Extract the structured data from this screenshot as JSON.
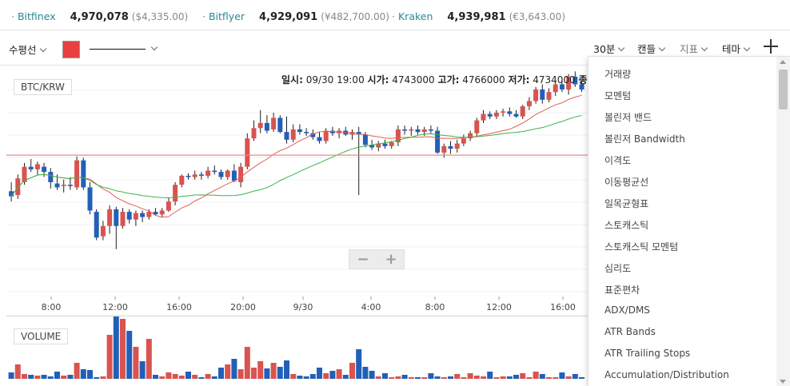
{
  "exchanges": [
    {
      "name": "Bitfinex",
      "price": "4,970,078",
      "converted": "($4,335.00)"
    },
    {
      "name": "Bitflyer",
      "price": "4,929,091",
      "converted": "(¥482,700.00)"
    },
    {
      "name": "Kraken",
      "price": "4,939,981",
      "converted": "(€3,643.00)"
    }
  ],
  "toolbar": {
    "line_type": "수평선",
    "line_color": "#e84040",
    "interval": "30분",
    "chart_type": "캔들",
    "indicators": "지표",
    "theme": "테마"
  },
  "info_bar": {
    "datetime_label": "일시:",
    "datetime_value": "09/30 19:00",
    "open_label": "시가:",
    "open_value": "4743000",
    "high_label": "고가:",
    "high_value": "4766000",
    "low_label": "저가:",
    "low_value": "4734000",
    "close_label": "종가:"
  },
  "zoom": {
    "minus": "−",
    "plus": "+"
  },
  "indicator_menu": [
    "거래량",
    "모멘텀",
    "볼린저 밴드",
    "볼린저 Bandwidth",
    "이격도",
    "이동평균선",
    "일목균형표",
    "스토캐스틱",
    "스토캐스틱 모멘텀",
    "심리도",
    "표준편차",
    "ADX/DMS",
    "ATR Bands",
    "ATR Trailing Stops",
    "Accumulation/Distribution"
  ],
  "chart_data": {
    "type": "candlestick",
    "title": "BTC/KRW",
    "volume_title": "VOLUME",
    "x_ticks": [
      "8:00",
      "12:00",
      "16:00",
      "20:00",
      "9/30",
      "4:00",
      "8:00",
      "12:00",
      "16:00"
    ],
    "price_range": [
      4605000,
      4775000
    ],
    "horizontal_line": 4711000,
    "colors": {
      "up": "#d9534f",
      "down": "#2260b8",
      "ma_short": "#e06055",
      "ma_long": "#3bb54a"
    },
    "candles": [
      {
        "o": 4683000,
        "h": 4690000,
        "l": 4675000,
        "c": 4679000
      },
      {
        "o": 4680000,
        "h": 4696000,
        "l": 4677000,
        "c": 4693000
      },
      {
        "o": 4690000,
        "h": 4705000,
        "l": 4688000,
        "c": 4702000
      },
      {
        "o": 4702000,
        "h": 4708000,
        "l": 4698000,
        "c": 4700000
      },
      {
        "o": 4700000,
        "h": 4706000,
        "l": 4696000,
        "c": 4704000
      },
      {
        "o": 4702000,
        "h": 4705000,
        "l": 4694000,
        "c": 4698000
      },
      {
        "o": 4698000,
        "h": 4701000,
        "l": 4685000,
        "c": 4690000
      },
      {
        "o": 4689000,
        "h": 4696000,
        "l": 4684000,
        "c": 4686000
      },
      {
        "o": 4687000,
        "h": 4692000,
        "l": 4682000,
        "c": 4688000
      },
      {
        "o": 4688000,
        "h": 4694000,
        "l": 4684000,
        "c": 4687000
      },
      {
        "o": 4686000,
        "h": 4710000,
        "l": 4684000,
        "c": 4707000
      },
      {
        "o": 4707000,
        "h": 4709000,
        "l": 4684000,
        "c": 4686000
      },
      {
        "o": 4686000,
        "h": 4690000,
        "l": 4665000,
        "c": 4668000
      },
      {
        "o": 4667000,
        "h": 4669000,
        "l": 4645000,
        "c": 4647000
      },
      {
        "o": 4648000,
        "h": 4660000,
        "l": 4645000,
        "c": 4656000
      },
      {
        "o": 4656000,
        "h": 4672000,
        "l": 4650000,
        "c": 4669000
      },
      {
        "o": 4669000,
        "h": 4671000,
        "l": 4638000,
        "c": 4656000
      },
      {
        "o": 4656000,
        "h": 4670000,
        "l": 4654000,
        "c": 4667000
      },
      {
        "o": 4667000,
        "h": 4669000,
        "l": 4658000,
        "c": 4661000
      },
      {
        "o": 4661000,
        "h": 4668000,
        "l": 4656000,
        "c": 4666000
      },
      {
        "o": 4666000,
        "h": 4668000,
        "l": 4659000,
        "c": 4663000
      },
      {
        "o": 4663000,
        "h": 4669000,
        "l": 4661000,
        "c": 4667000
      },
      {
        "o": 4667000,
        "h": 4670000,
        "l": 4664000,
        "c": 4665000
      },
      {
        "o": 4665000,
        "h": 4670000,
        "l": 4663000,
        "c": 4668000
      },
      {
        "o": 4668000,
        "h": 4678000,
        "l": 4667000,
        "c": 4675000
      },
      {
        "o": 4675000,
        "h": 4690000,
        "l": 4672000,
        "c": 4688000
      },
      {
        "o": 4688000,
        "h": 4696000,
        "l": 4686000,
        "c": 4695000
      },
      {
        "o": 4695000,
        "h": 4697000,
        "l": 4692000,
        "c": 4694000
      },
      {
        "o": 4694000,
        "h": 4699000,
        "l": 4692000,
        "c": 4696000
      },
      {
        "o": 4696000,
        "h": 4698000,
        "l": 4692000,
        "c": 4695000
      },
      {
        "o": 4695000,
        "h": 4702000,
        "l": 4693000,
        "c": 4699000
      },
      {
        "o": 4699000,
        "h": 4703000,
        "l": 4696000,
        "c": 4698000
      },
      {
        "o": 4698000,
        "h": 4700000,
        "l": 4692000,
        "c": 4694000
      },
      {
        "o": 4694000,
        "h": 4700000,
        "l": 4692000,
        "c": 4699000
      },
      {
        "o": 4699000,
        "h": 4704000,
        "l": 4690000,
        "c": 4691000
      },
      {
        "o": 4690000,
        "h": 4705000,
        "l": 4686000,
        "c": 4702000
      },
      {
        "o": 4702000,
        "h": 4728000,
        "l": 4700000,
        "c": 4724000
      },
      {
        "o": 4724000,
        "h": 4738000,
        "l": 4722000,
        "c": 4732000
      },
      {
        "o": 4732000,
        "h": 4746000,
        "l": 4728000,
        "c": 4736000
      },
      {
        "o": 4736000,
        "h": 4742000,
        "l": 4728000,
        "c": 4730000
      },
      {
        "o": 4731000,
        "h": 4744000,
        "l": 4729000,
        "c": 4740000
      },
      {
        "o": 4740000,
        "h": 4742000,
        "l": 4728000,
        "c": 4729000
      },
      {
        "o": 4729000,
        "h": 4741000,
        "l": 4720000,
        "c": 4723000
      },
      {
        "o": 4723000,
        "h": 4735000,
        "l": 4721000,
        "c": 4731000
      },
      {
        "o": 4731000,
        "h": 4735000,
        "l": 4727000,
        "c": 4729000
      },
      {
        "o": 4729000,
        "h": 4732000,
        "l": 4726000,
        "c": 4728000
      },
      {
        "o": 4728000,
        "h": 4731000,
        "l": 4723000,
        "c": 4725000
      },
      {
        "o": 4725000,
        "h": 4729000,
        "l": 4720000,
        "c": 4722000
      },
      {
        "o": 4722000,
        "h": 4732000,
        "l": 4720000,
        "c": 4730000
      },
      {
        "o": 4730000,
        "h": 4733000,
        "l": 4726000,
        "c": 4728000
      },
      {
        "o": 4728000,
        "h": 4732000,
        "l": 4724000,
        "c": 4730000
      },
      {
        "o": 4730000,
        "h": 4733000,
        "l": 4726000,
        "c": 4727000
      },
      {
        "o": 4727000,
        "h": 4731000,
        "l": 4723000,
        "c": 4729000
      },
      {
        "o": 4729000,
        "h": 4733000,
        "l": 4680000,
        "c": 4727000
      },
      {
        "o": 4727000,
        "h": 4729000,
        "l": 4717000,
        "c": 4719000
      },
      {
        "o": 4719000,
        "h": 4723000,
        "l": 4715000,
        "c": 4717000
      },
      {
        "o": 4717000,
        "h": 4722000,
        "l": 4714000,
        "c": 4720000
      },
      {
        "o": 4720000,
        "h": 4723000,
        "l": 4716000,
        "c": 4718000
      },
      {
        "o": 4718000,
        "h": 4722000,
        "l": 4716000,
        "c": 4721000
      },
      {
        "o": 4721000,
        "h": 4734000,
        "l": 4718000,
        "c": 4731000
      },
      {
        "o": 4731000,
        "h": 4734000,
        "l": 4727000,
        "c": 4730000
      },
      {
        "o": 4730000,
        "h": 4733000,
        "l": 4726000,
        "c": 4731000
      },
      {
        "o": 4731000,
        "h": 4734000,
        "l": 4727000,
        "c": 4729000
      },
      {
        "o": 4729000,
        "h": 4733000,
        "l": 4726000,
        "c": 4731000
      },
      {
        "o": 4731000,
        "h": 4734000,
        "l": 4728000,
        "c": 4730000
      },
      {
        "o": 4730000,
        "h": 4733000,
        "l": 4712000,
        "c": 4713000
      },
      {
        "o": 4713000,
        "h": 4720000,
        "l": 4709000,
        "c": 4718000
      },
      {
        "o": 4718000,
        "h": 4722000,
        "l": 4712000,
        "c": 4716000
      },
      {
        "o": 4716000,
        "h": 4723000,
        "l": 4713000,
        "c": 4720000
      },
      {
        "o": 4720000,
        "h": 4727000,
        "l": 4718000,
        "c": 4724000
      },
      {
        "o": 4724000,
        "h": 4730000,
        "l": 4722000,
        "c": 4728000
      },
      {
        "o": 4728000,
        "h": 4740000,
        "l": 4726000,
        "c": 4738000
      },
      {
        "o": 4738000,
        "h": 4746000,
        "l": 4736000,
        "c": 4743000
      },
      {
        "o": 4743000,
        "h": 4745000,
        "l": 4739000,
        "c": 4741000
      },
      {
        "o": 4741000,
        "h": 4746000,
        "l": 4739000,
        "c": 4744000
      },
      {
        "o": 4744000,
        "h": 4747000,
        "l": 4741000,
        "c": 4745000
      },
      {
        "o": 4745000,
        "h": 4748000,
        "l": 4741000,
        "c": 4743000
      },
      {
        "o": 4743000,
        "h": 4746000,
        "l": 4740000,
        "c": 4741000
      },
      {
        "o": 4741000,
        "h": 4750000,
        "l": 4739000,
        "c": 4749000
      },
      {
        "o": 4749000,
        "h": 4756000,
        "l": 4746000,
        "c": 4753000
      },
      {
        "o": 4753000,
        "h": 4764000,
        "l": 4751000,
        "c": 4762000
      },
      {
        "o": 4762000,
        "h": 4766000,
        "l": 4751000,
        "c": 4754000
      },
      {
        "o": 4754000,
        "h": 4763000,
        "l": 4752000,
        "c": 4760000
      },
      {
        "o": 4760000,
        "h": 4768000,
        "l": 4757000,
        "c": 4766000
      },
      {
        "o": 4766000,
        "h": 4770000,
        "l": 4760000,
        "c": 4762000
      },
      {
        "o": 4762000,
        "h": 4774000,
        "l": 4758000,
        "c": 4772000
      },
      {
        "o": 4772000,
        "h": 4776000,
        "l": 4764000,
        "c": 4766000
      },
      {
        "o": 4766000,
        "h": 4768000,
        "l": 4760000,
        "c": 4762000
      }
    ],
    "volumes": [
      8,
      18,
      6,
      5,
      4,
      5,
      3,
      9,
      4,
      5,
      20,
      12,
      11,
      2,
      3,
      55,
      78,
      75,
      60,
      40,
      22,
      50,
      5,
      3,
      8,
      6,
      4,
      9,
      5,
      2,
      6,
      3,
      14,
      18,
      25,
      12,
      40,
      14,
      22,
      13,
      20,
      15,
      23,
      6,
      4,
      3,
      6,
      14,
      7,
      10,
      12,
      5,
      20,
      37,
      15,
      10,
      3,
      7,
      2,
      3,
      5,
      2,
      2,
      2,
      7,
      3,
      2,
      3,
      6,
      2,
      7,
      4,
      3,
      9,
      2,
      3,
      3,
      5,
      7,
      2,
      9,
      6,
      2,
      2,
      8,
      3,
      6,
      2
    ]
  }
}
